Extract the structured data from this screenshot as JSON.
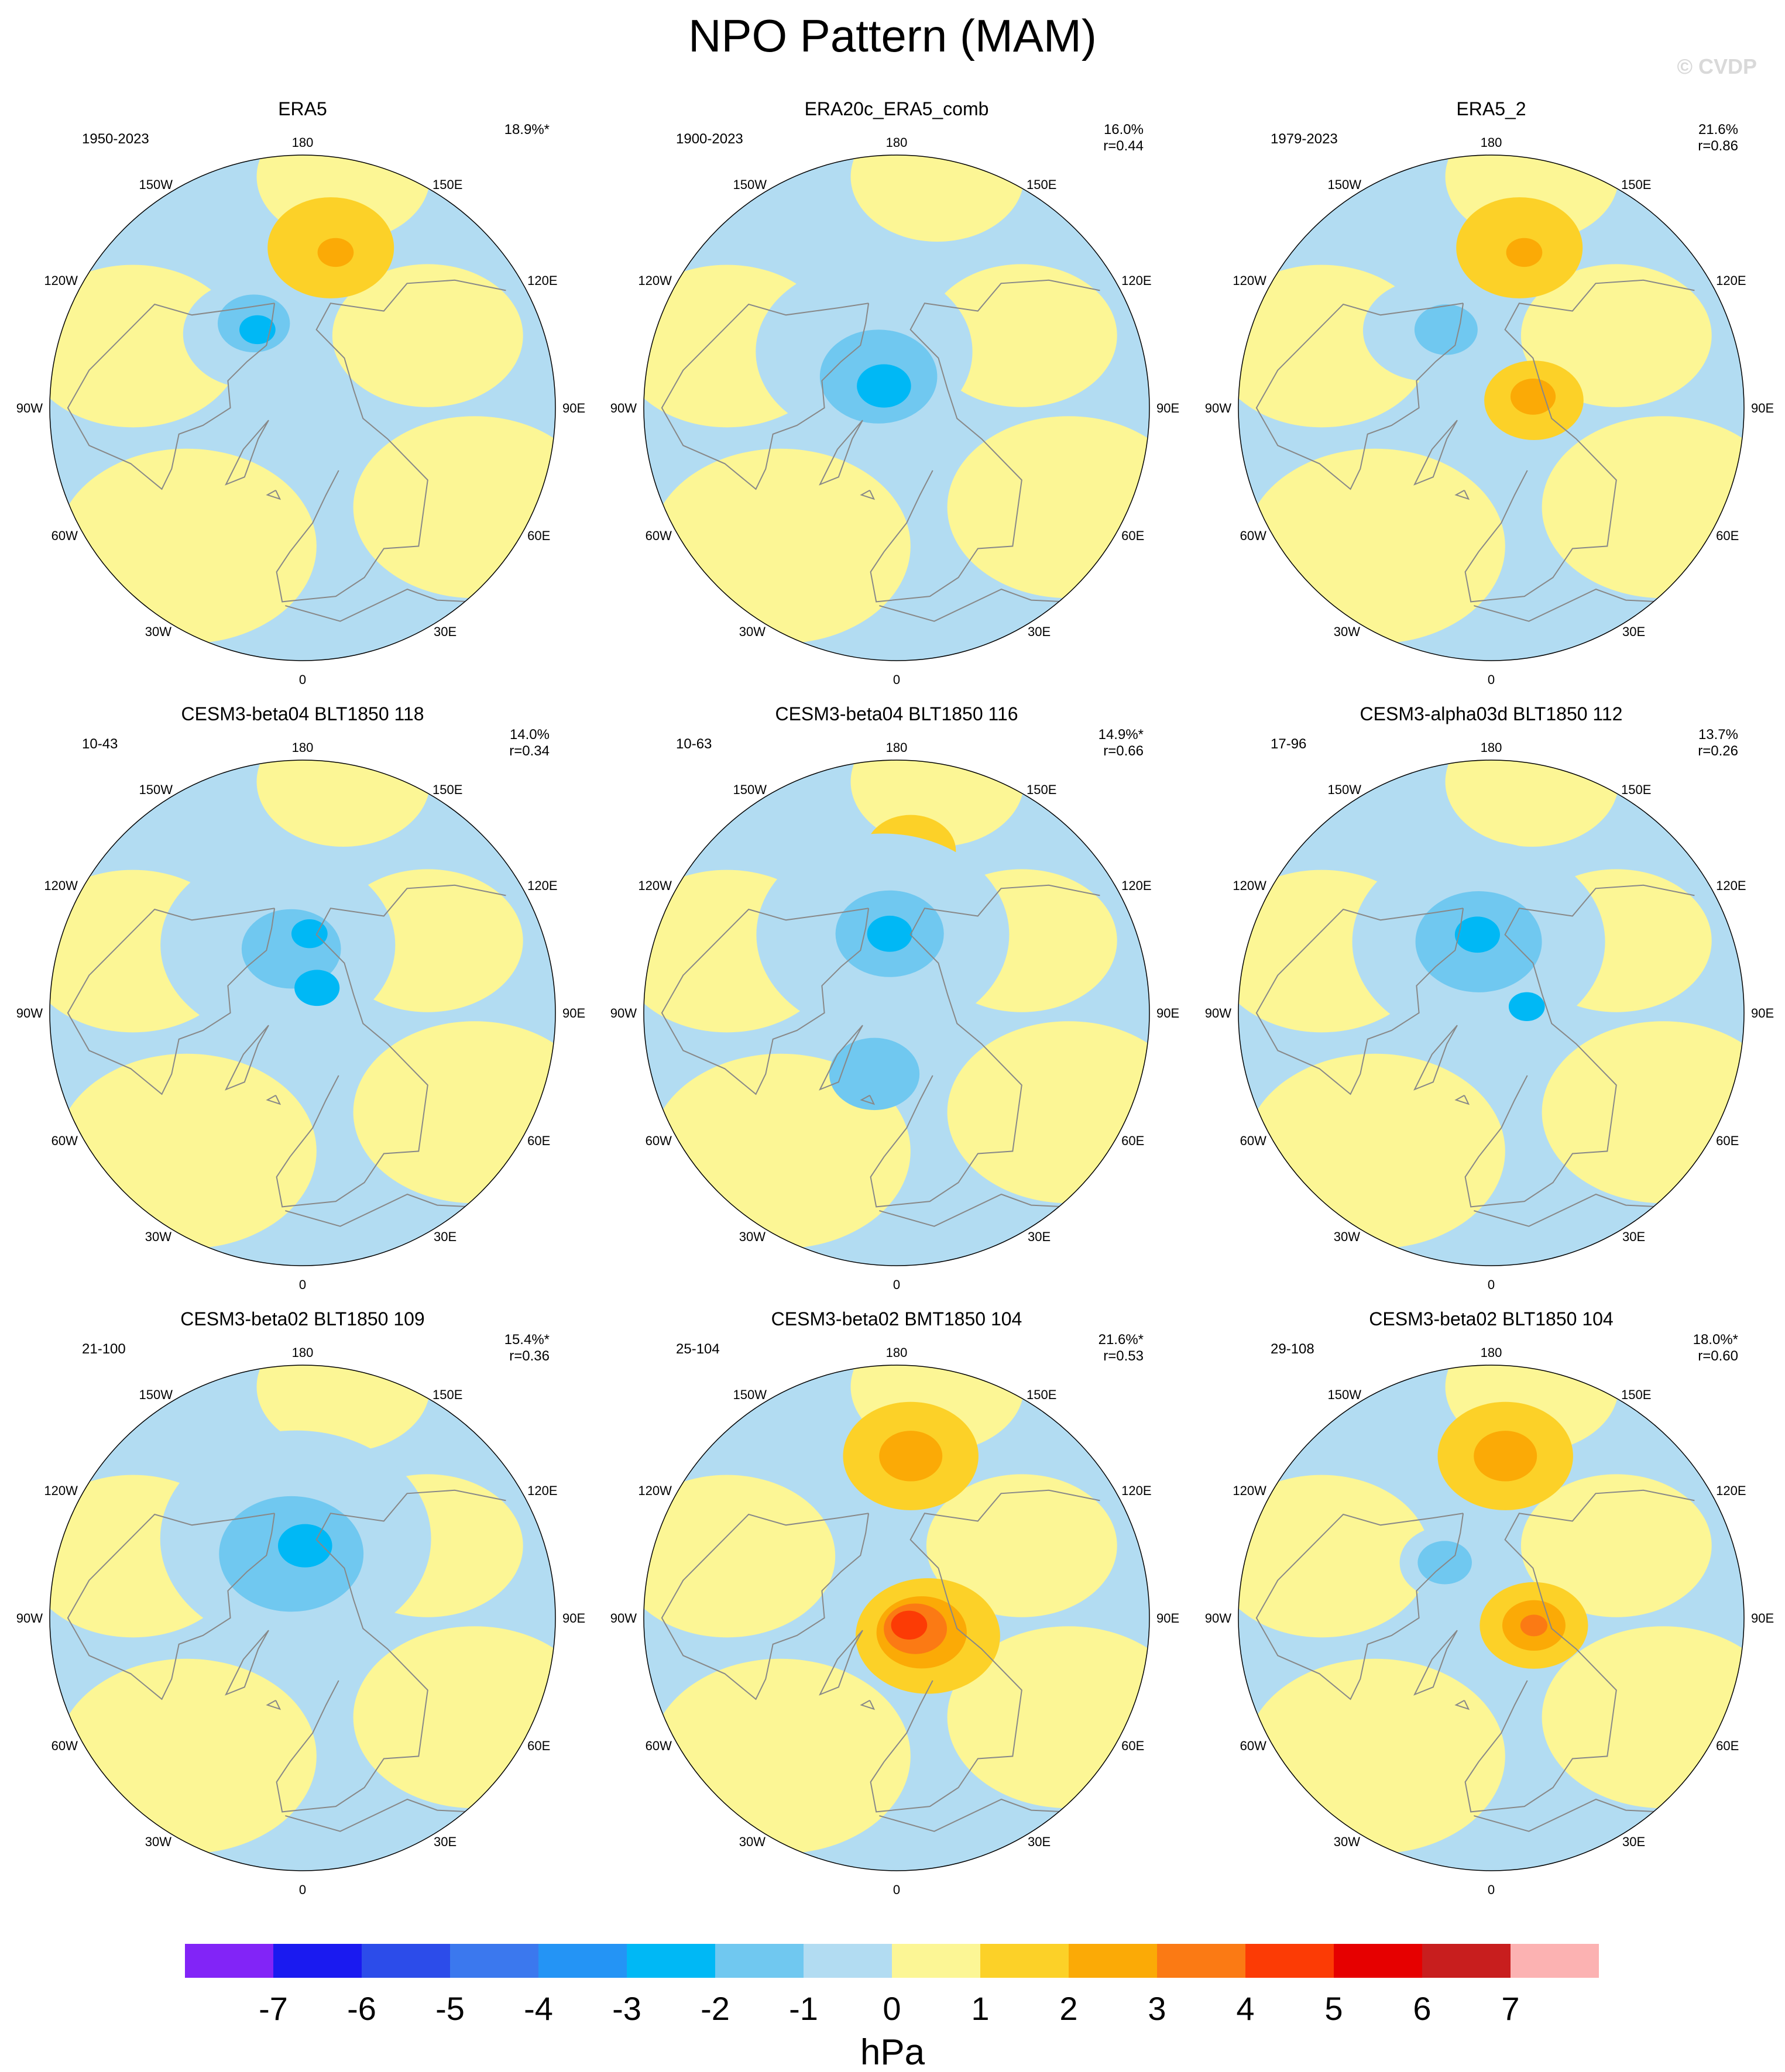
{
  "figure": {
    "title": "NPO Pattern (MAM)",
    "watermark": "© CVDP",
    "longitude_labels": {
      "top": "180",
      "bottom": "0",
      "upper_left": "150W",
      "upper_right": "150E",
      "mid_upper_left": "120W",
      "mid_upper_right": "120E",
      "left": "90W",
      "right": "90E",
      "mid_lower_left": "60W",
      "mid_lower_right": "60E",
      "lower_left": "30W",
      "lower_right": "30E"
    }
  },
  "colors": {
    "ocean_neg": "#b2dcf2",
    "land_pos": "#fcf695",
    "coastline": "#888888"
  },
  "panels": [
    {
      "title": "ERA5",
      "years": "1950-2023",
      "pct": "18.9%*",
      "r": "",
      "features": [
        {
          "type": "blob",
          "level": 1,
          "lat": 45,
          "lon": 170,
          "r": 14
        },
        {
          "type": "blob",
          "level": 2,
          "lat": 46,
          "lon": 168,
          "r": 4
        },
        {
          "type": "blob",
          "level": -1,
          "lat": 65,
          "lon": -145,
          "r": 15
        },
        {
          "type": "blob",
          "level": -2,
          "lat": 63,
          "lon": -150,
          "r": 8
        },
        {
          "type": "blob",
          "level": -3,
          "lat": 65,
          "lon": -150,
          "r": 4
        }
      ]
    },
    {
      "title": "ERA20c_ERA5_comb",
      "years": "1900-2023",
      "pct": "16.0%",
      "r": "r=0.44",
      "features": [
        {
          "type": "blob",
          "level": -1,
          "lat": 72,
          "lon": -150,
          "r": 24
        },
        {
          "type": "blob",
          "level": -2,
          "lat": 80,
          "lon": -150,
          "r": 13
        },
        {
          "type": "blob",
          "level": -3,
          "lat": 83,
          "lon": -150,
          "r": 6
        }
      ]
    },
    {
      "title": "ERA5_2",
      "years": "1979-2023",
      "pct": "21.6%",
      "r": "r=0.86",
      "features": [
        {
          "type": "blob",
          "level": 1,
          "lat": 45,
          "lon": 170,
          "r": 14
        },
        {
          "type": "blob",
          "level": 2,
          "lat": 46,
          "lon": 168,
          "r": 4
        },
        {
          "type": "blob",
          "level": -1,
          "lat": 62,
          "lon": -140,
          "r": 14
        },
        {
          "type": "blob",
          "level": -2,
          "lat": 65,
          "lon": -150,
          "r": 7
        },
        {
          "type": "blob",
          "level": 1,
          "lat": 78,
          "lon": 100,
          "r": 11
        },
        {
          "type": "blob",
          "level": 2,
          "lat": 78,
          "lon": 105,
          "r": 5
        }
      ]
    },
    {
      "title": "CESM3-beta04 BLT1850 118",
      "years": "10-43",
      "pct": "14.0%",
      "r": "r=0.34",
      "features": [
        {
          "type": "blob",
          "level": -1,
          "lat": 70,
          "lon": -160,
          "r": 26
        },
        {
          "type": "blob",
          "level": -2,
          "lat": 72,
          "lon": -170,
          "r": 11
        },
        {
          "type": "blob",
          "level": -3,
          "lat": 68,
          "lon": 175,
          "r": 4
        },
        {
          "type": "blob",
          "level": -3,
          "lat": 82,
          "lon": 150,
          "r": 5
        }
      ]
    },
    {
      "title": "CESM3-beta04 BLT1850 116",
      "years": "10-63",
      "pct": "14.9%*",
      "r": "r=0.66",
      "features": [
        {
          "type": "blob",
          "level": 1,
          "lat": 45,
          "lon": 175,
          "r": 10
        },
        {
          "type": "blob",
          "level": -1,
          "lat": 68,
          "lon": -170,
          "r": 28
        },
        {
          "type": "blob",
          "level": -2,
          "lat": 68,
          "lon": -175,
          "r": 12
        },
        {
          "type": "blob",
          "level": -3,
          "lat": 68,
          "lon": -175,
          "r": 5
        },
        {
          "type": "blob",
          "level": -2,
          "lat": 72,
          "lon": -20,
          "r": 10
        }
      ]
    },
    {
      "title": "CESM3-alpha03d BLT1850 112",
      "years": "17-96",
      "pct": "13.7%",
      "r": "r=0.26",
      "features": [
        {
          "type": "blob",
          "level": -1,
          "lat": 70,
          "lon": -170,
          "r": 28
        },
        {
          "type": "blob",
          "level": -2,
          "lat": 70,
          "lon": -170,
          "r": 14
        },
        {
          "type": "blob",
          "level": -3,
          "lat": 68,
          "lon": -170,
          "r": 5
        },
        {
          "type": "blob",
          "level": -3,
          "lat": 80,
          "lon": 100,
          "r": 4
        }
      ]
    },
    {
      "title": "CESM3-beta02 BLT1850 109",
      "years": "21-100",
      "pct": "15.4%*",
      "r": "r=0.36",
      "features": [
        {
          "type": "blob",
          "level": -1,
          "lat": 68,
          "lon": -175,
          "r": 30
        },
        {
          "type": "blob",
          "level": -2,
          "lat": 72,
          "lon": -170,
          "r": 16
        },
        {
          "type": "blob",
          "level": -3,
          "lat": 70,
          "lon": 178,
          "r": 6
        }
      ]
    },
    {
      "title": "CESM3-beta02 BMT1850 104",
      "years": "25-104",
      "pct": "21.6%*",
      "r": "r=0.53",
      "features": [
        {
          "type": "blob",
          "level": 1,
          "lat": 45,
          "lon": 175,
          "r": 15
        },
        {
          "type": "blob",
          "level": 2,
          "lat": 45,
          "lon": 175,
          "r": 7
        },
        {
          "type": "blob",
          "level": 1,
          "lat": 80,
          "lon": 60,
          "r": 16
        },
        {
          "type": "blob",
          "level": 2,
          "lat": 82,
          "lon": 60,
          "r": 10
        },
        {
          "type": "blob",
          "level": 3,
          "lat": 84,
          "lon": 60,
          "r": 7
        },
        {
          "type": "blob",
          "level": 4,
          "lat": 86,
          "lon": 60,
          "r": 4
        }
      ]
    },
    {
      "title": "CESM3-beta02 BLT1850 104",
      "years": "29-108",
      "pct": "18.0%*",
      "r": "r=0.60",
      "features": [
        {
          "type": "blob",
          "level": 1,
          "lat": 45,
          "lon": 175,
          "r": 15
        },
        {
          "type": "blob",
          "level": 2,
          "lat": 45,
          "lon": 175,
          "r": 7
        },
        {
          "type": "blob",
          "level": 1,
          "lat": 78,
          "lon": 80,
          "r": 12
        },
        {
          "type": "blob",
          "level": 2,
          "lat": 78,
          "lon": 80,
          "r": 7
        },
        {
          "type": "blob",
          "level": 3,
          "lat": 78,
          "lon": 80,
          "r": 3
        },
        {
          "type": "blob",
          "level": -1,
          "lat": 70,
          "lon": -140,
          "r": 10
        },
        {
          "type": "blob",
          "level": -2,
          "lat": 70,
          "lon": -140,
          "r": 6
        }
      ]
    }
  ],
  "colorbar": {
    "unit": "hPa",
    "labels": [
      "-7",
      "-6",
      "-5",
      "-4",
      "-3",
      "-2",
      "-1",
      "0",
      "1",
      "2",
      "3",
      "4",
      "5",
      "6",
      "7"
    ],
    "colors": [
      "#8224f7",
      "#1a1af0",
      "#2c4cea",
      "#3b78ee",
      "#2494f5",
      "#00b8f5",
      "#70c8f0",
      "#b2dcf2",
      "#fcf695",
      "#fcd128",
      "#fbaa06",
      "#fb7a14",
      "#fc3b05",
      "#e60000",
      "#c81e1e",
      "#fcb2b2"
    ],
    "levels": {
      "-7": 0,
      "-6": 1,
      "-5": 2,
      "-4": 3,
      "-3": 4,
      "-2": 5,
      "-1": 6,
      "0": 7,
      "1": 8,
      "2": 9,
      "3": 10,
      "4": 11,
      "5": 12,
      "6": 13,
      "7": 14
    }
  }
}
